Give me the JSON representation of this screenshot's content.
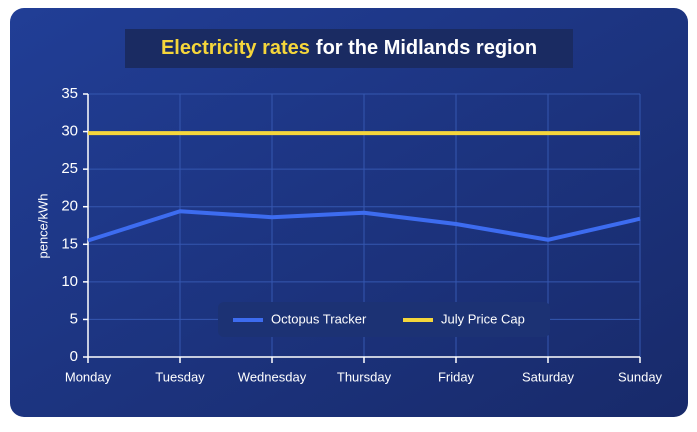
{
  "chart_data": {
    "type": "line",
    "title_highlight": "Electricity rates",
    "title": "for the Midlands region",
    "y_label": "pence/kWh",
    "categories": [
      "Monday",
      "Tuesday",
      "Wednesday",
      "Thursday",
      "Friday",
      "Saturday",
      "Sunday"
    ],
    "series": [
      {
        "name": "Octopus Tracker",
        "color": "#3d6cf0",
        "values": [
          15.5,
          19.4,
          18.6,
          19.2,
          17.7,
          15.6,
          18.4
        ]
      },
      {
        "name": "July Price Cap",
        "color": "#f5d63b",
        "values": [
          29.8,
          29.8,
          29.8,
          29.8,
          29.8,
          29.8,
          29.8
        ]
      }
    ],
    "ylim": [
      0,
      35
    ],
    "yticks": [
      0,
      5,
      10,
      15,
      20,
      25,
      30,
      35
    ],
    "grid": true,
    "legend": "bottom"
  }
}
